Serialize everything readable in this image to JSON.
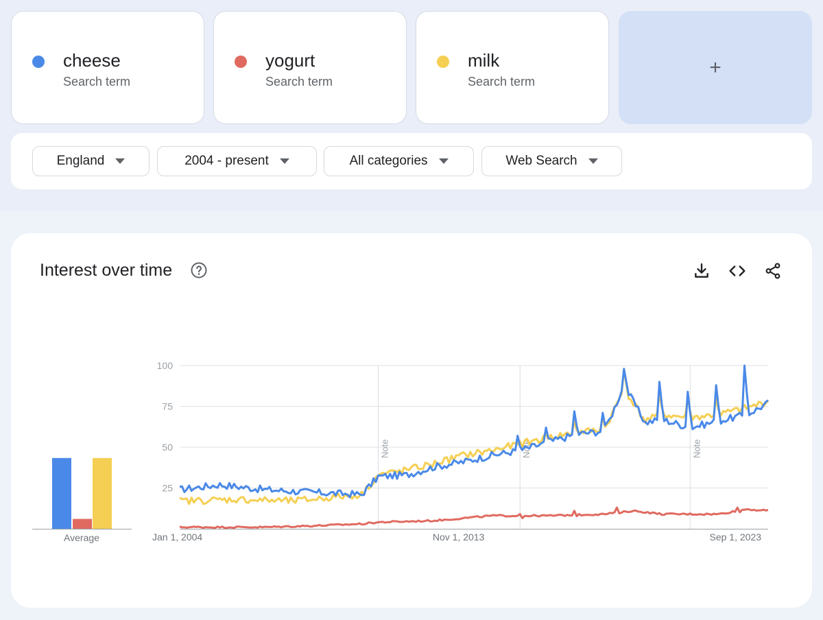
{
  "terms": [
    {
      "name": "cheese",
      "sub": "Search term",
      "color": "#4a89e8"
    },
    {
      "name": "yogurt",
      "sub": "Search term",
      "color": "#e06a60"
    },
    {
      "name": "milk",
      "sub": "Search term",
      "color": "#f5cf53"
    }
  ],
  "add_label": "+",
  "filters": {
    "region": "England",
    "time": "2004 - present",
    "category": "All categories",
    "search_type": "Web Search"
  },
  "panel": {
    "title": "Interest over time",
    "icons": [
      "help-icon",
      "download-icon",
      "embed-icon",
      "share-icon"
    ]
  },
  "chart_data": [
    {
      "type": "bar",
      "categories": [
        "cheese",
        "yogurt",
        "milk"
      ],
      "values": [
        43,
        6,
        43
      ],
      "xlabel": "Average",
      "ylim": [
        0,
        100
      ]
    },
    {
      "type": "line",
      "x_range": [
        "2004-01",
        "2024-10"
      ],
      "ylim": [
        0,
        100
      ],
      "yticks": [
        25,
        50,
        75,
        100
      ],
      "xtick_labels": [
        "Jan 1, 2004",
        "Nov 1, 2013",
        "Sep 1, 2023"
      ],
      "notes": [
        {
          "date": "2011-01",
          "label": "Note"
        },
        {
          "date": "2016-01",
          "label": "Note"
        },
        {
          "date": "2022-01",
          "label": "Note"
        }
      ],
      "grid": true,
      "series": [
        {
          "name": "cheese",
          "color": "#4a89e8",
          "anchors": [
            [
              "2004-01",
              24
            ],
            [
              "2005-06",
              27
            ],
            [
              "2007-01",
              24
            ],
            [
              "2009-01",
              22
            ],
            [
              "2010-06",
              21
            ],
            [
              "2011-01",
              32
            ],
            [
              "2012-01",
              33
            ],
            [
              "2013-01",
              38
            ],
            [
              "2014-01",
              41
            ],
            [
              "2015-01",
              45
            ],
            [
              "2016-01",
              48
            ],
            [
              "2017-01",
              53
            ],
            [
              "2018-01",
              58
            ],
            [
              "2019-01",
              60
            ],
            [
              "2019-09",
              88
            ],
            [
              "2020-06",
              65
            ],
            [
              "2021-01",
              67
            ],
            [
              "2022-01",
              62
            ],
            [
              "2023-01",
              66
            ],
            [
              "2024-01",
              70
            ],
            [
              "2024-10",
              77
            ]
          ],
          "spikes": [
            [
              "2015-12",
              57
            ],
            [
              "2016-12",
              62
            ],
            [
              "2017-12",
              72
            ],
            [
              "2018-12",
              71
            ],
            [
              "2019-09",
              98
            ],
            [
              "2020-12",
              90
            ],
            [
              "2021-12",
              84
            ],
            [
              "2022-12",
              88
            ],
            [
              "2023-12",
              100
            ]
          ]
        },
        {
          "name": "yogurt",
          "color": "#e06a60",
          "anchors": [
            [
              "2004-01",
              1
            ],
            [
              "2007-01",
              1
            ],
            [
              "2009-01",
              2
            ],
            [
              "2010-06",
              3
            ],
            [
              "2011-01",
              4
            ],
            [
              "2013-01",
              5
            ],
            [
              "2015-01",
              8
            ],
            [
              "2017-01",
              8
            ],
            [
              "2019-01",
              9
            ],
            [
              "2020-01",
              11
            ],
            [
              "2021-01",
              9
            ],
            [
              "2023-01",
              9
            ],
            [
              "2024-01",
              12
            ],
            [
              "2024-10",
              11
            ]
          ],
          "spikes": [
            [
              "2016-01",
              9
            ],
            [
              "2017-12",
              11
            ],
            [
              "2019-06",
              13
            ],
            [
              "2023-09",
              13
            ]
          ]
        },
        {
          "name": "milk",
          "color": "#f5cf53",
          "anchors": [
            [
              "2004-01",
              17
            ],
            [
              "2006-01",
              18
            ],
            [
              "2008-01",
              17
            ],
            [
              "2010-06",
              21
            ],
            [
              "2011-01",
              33
            ],
            [
              "2012-01",
              36
            ],
            [
              "2013-01",
              40
            ],
            [
              "2014-01",
              45
            ],
            [
              "2015-01",
              48
            ],
            [
              "2016-01",
              52
            ],
            [
              "2017-01",
              56
            ],
            [
              "2018-01",
              59
            ],
            [
              "2019-01",
              61
            ],
            [
              "2019-09",
              86
            ],
            [
              "2020-06",
              66
            ],
            [
              "2021-01",
              70
            ],
            [
              "2022-01",
              68
            ],
            [
              "2023-01",
              70
            ],
            [
              "2024-01",
              74
            ],
            [
              "2024-10",
              78
            ]
          ],
          "spikes": [
            [
              "2016-12",
              58
            ],
            [
              "2017-12",
              66
            ],
            [
              "2018-12",
              68
            ],
            [
              "2019-09",
              97
            ],
            [
              "2020-12",
              83
            ],
            [
              "2021-12",
              80
            ],
            [
              "2022-12",
              80
            ]
          ]
        }
      ]
    }
  ]
}
